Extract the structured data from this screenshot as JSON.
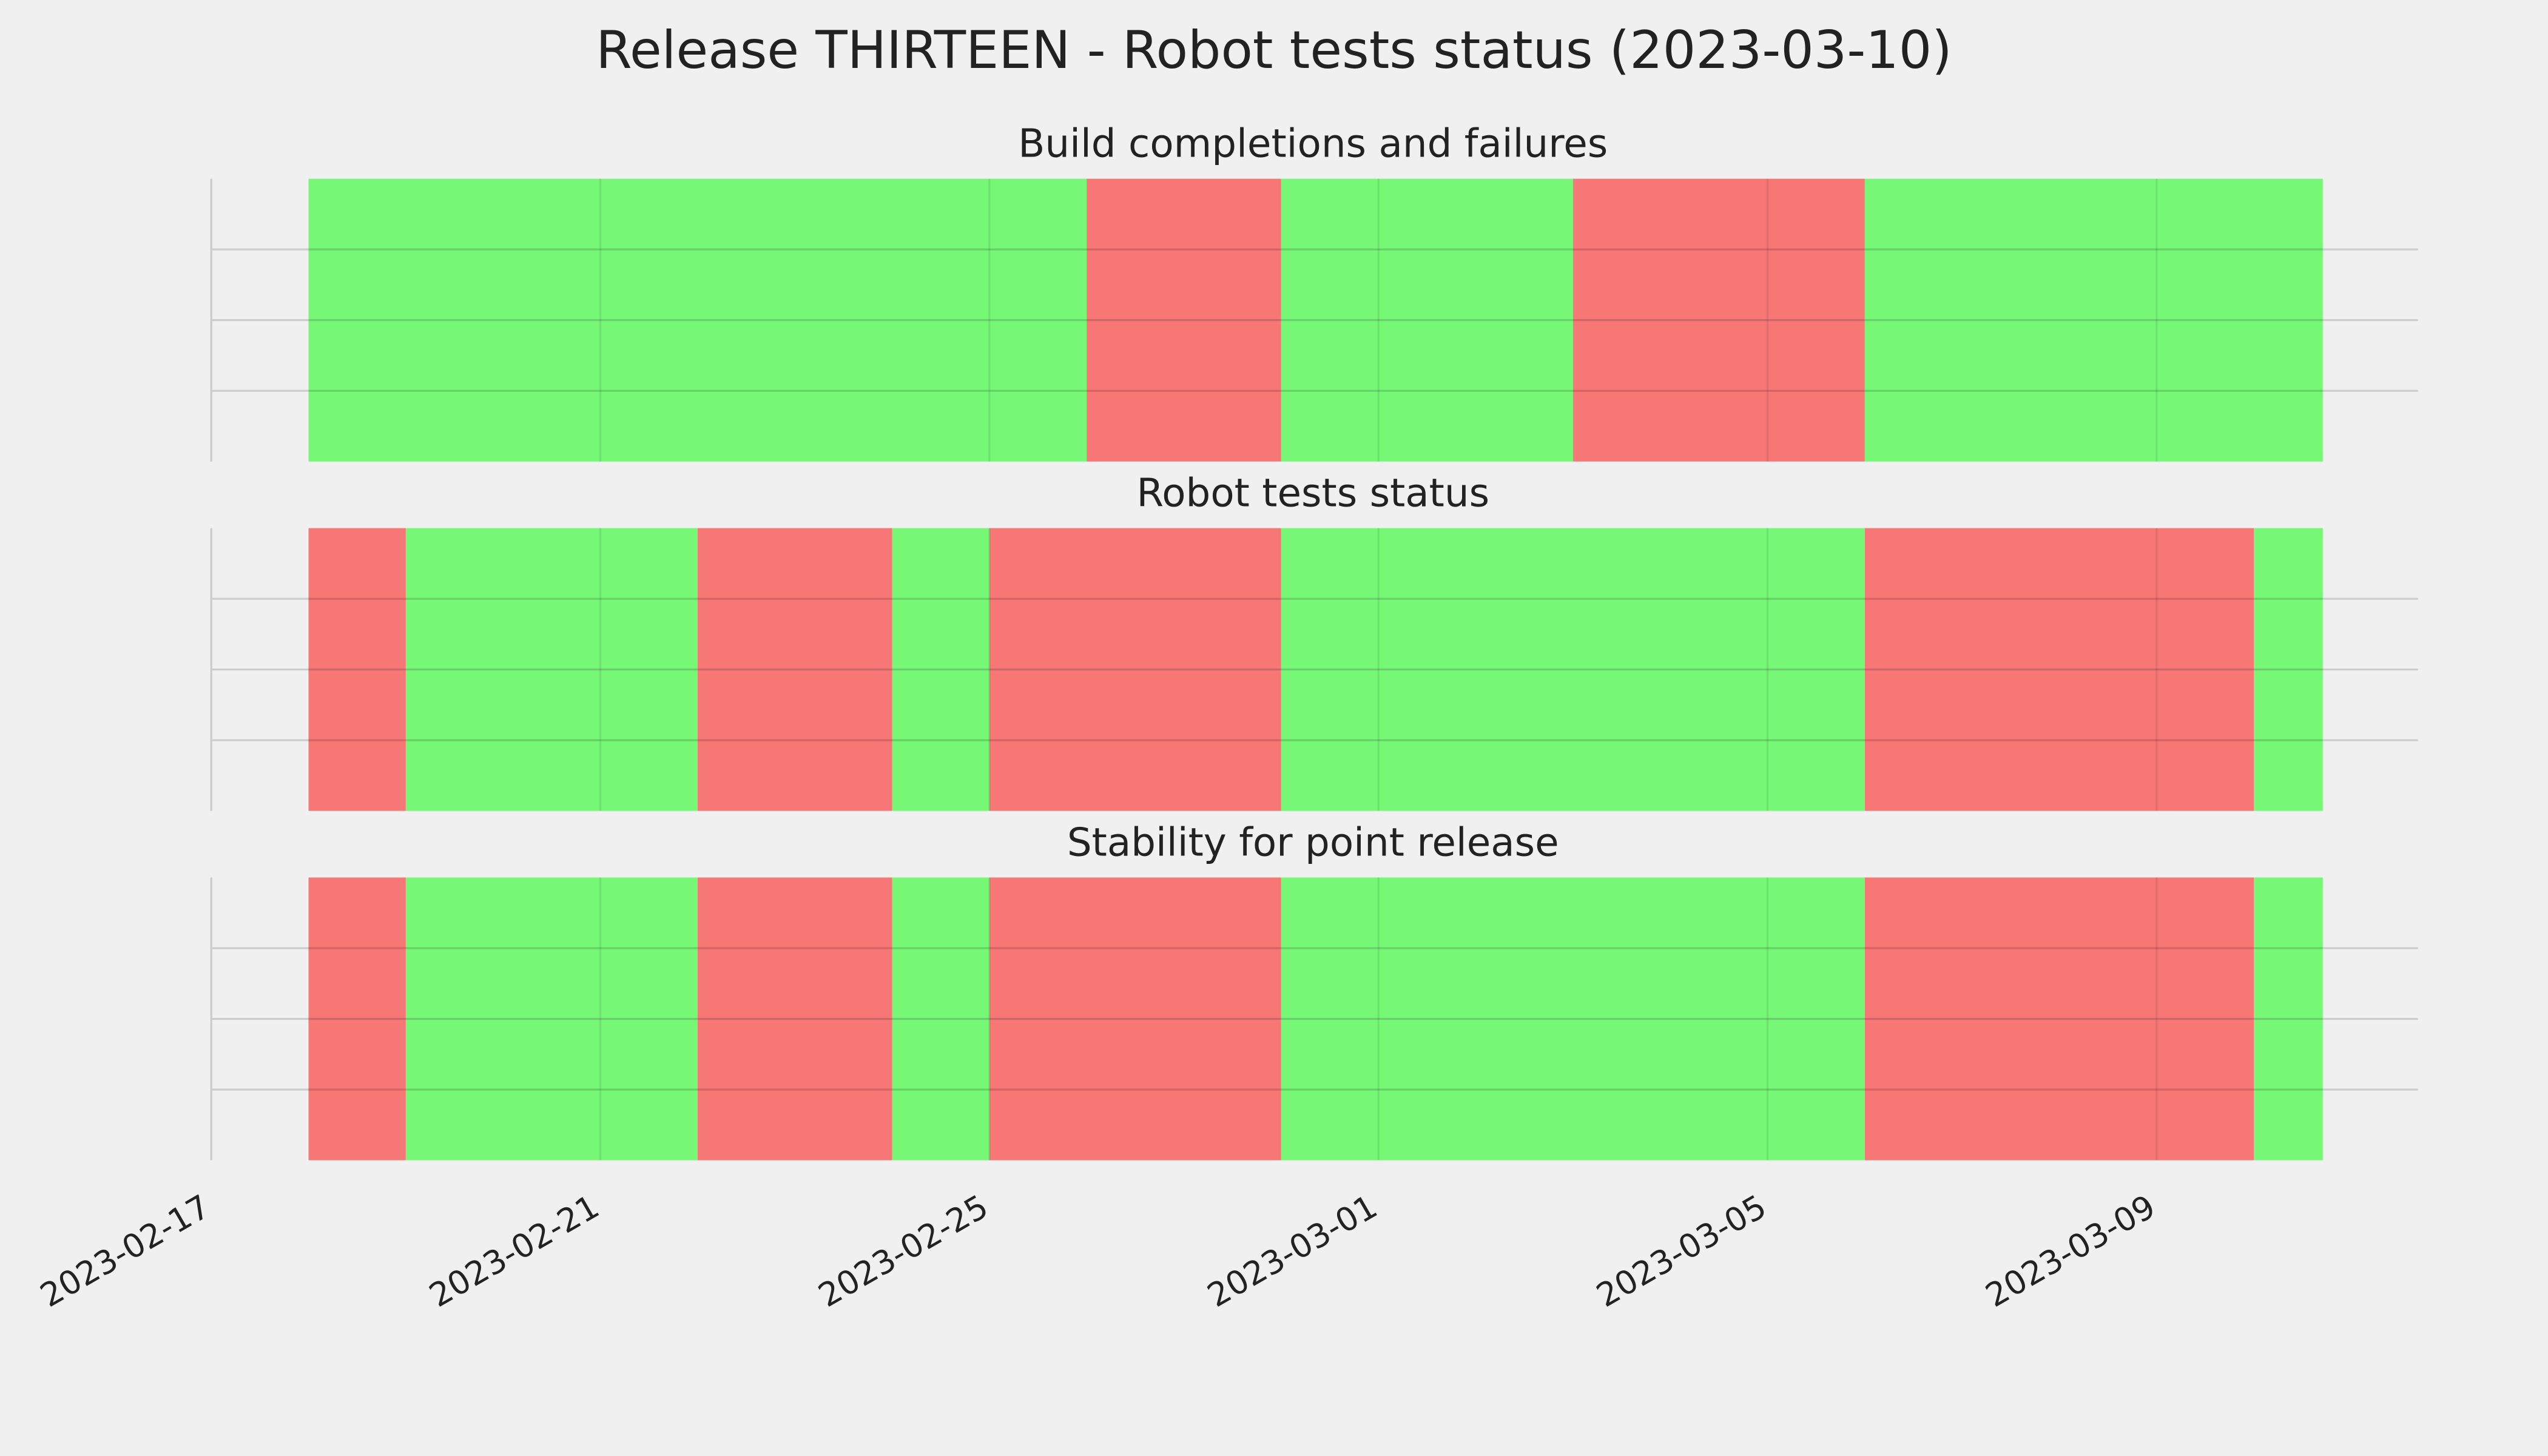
{
  "chart_data": {
    "type": "timeline",
    "title": "Release THIRTEEN - Robot tests status (2023-03-10)",
    "xlim": [
      "2023-02-17",
      "2023-03-11T16:30"
    ],
    "xticks": [
      "2023-02-17",
      "2023-02-21",
      "2023-02-25",
      "2023-03-01",
      "2023-03-05",
      "2023-03-09"
    ],
    "grid": true,
    "panels": [
      {
        "title": "Build completions and failures",
        "x": [
          "2023-02-18",
          "2023-02-26",
          "2023-02-28",
          "2023-03-03",
          "2023-03-06",
          "2023-03-10T17:00"
        ],
        "colors": [
          "#76f776",
          "#f77676",
          "#76f776",
          "#f77676",
          "#76f776"
        ],
        "ylim": [
          0,
          1
        ],
        "yticks": [
          0.25,
          0.5,
          0.75
        ]
      },
      {
        "title": "Robot tests status",
        "x": [
          "2023-02-18",
          "2023-02-19",
          "2023-02-22",
          "2023-02-24",
          "2023-02-25",
          "2023-02-28",
          "2023-03-06",
          "2023-03-10",
          "2023-03-10T17:00"
        ],
        "colors": [
          "#f77676",
          "#76f776",
          "#f77676",
          "#76f776",
          "#f77676",
          "#76f776",
          "#f77676",
          "#76f776"
        ],
        "ylim": [
          0,
          1
        ],
        "yticks": [
          0.25,
          0.5,
          0.75
        ]
      },
      {
        "title": "Stability for point release",
        "x": [
          "2023-02-18",
          "2023-02-19",
          "2023-02-22",
          "2023-02-24",
          "2023-02-25",
          "2023-02-28",
          "2023-03-06",
          "2023-03-10",
          "2023-03-10T17:00"
        ],
        "colors": [
          "#f77676",
          "#76f776",
          "#f77676",
          "#76f776",
          "#f77676",
          "#76f776",
          "#f77676",
          "#76f776"
        ],
        "ylim": [
          0,
          1
        ],
        "yticks": [
          0.25,
          0.5,
          0.75
        ]
      }
    ]
  }
}
